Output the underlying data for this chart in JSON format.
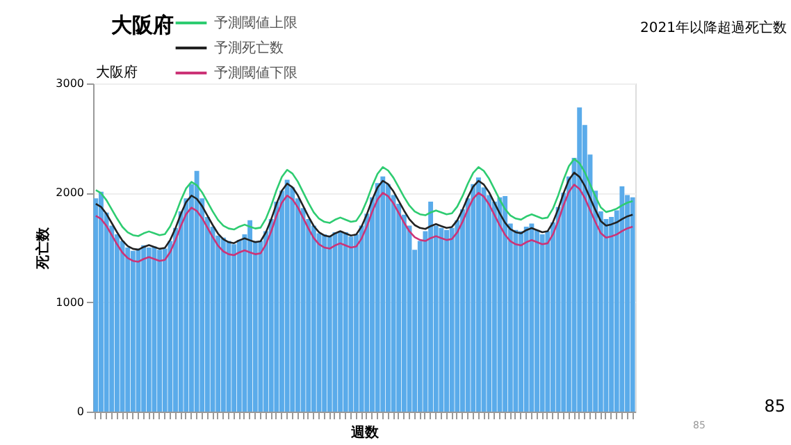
{
  "chart_data": {
    "type": "bar",
    "title": "大阪府",
    "subtitle": "大阪府",
    "xlabel": "週数",
    "ylabel": "死亡数",
    "annotations": [
      "2021年以降超過死亡数",
      "85",
      "85"
    ],
    "categories": [
      null,
      null,
      null,
      null,
      null,
      null,
      null,
      null,
      null,
      null,
      null,
      null,
      null,
      null,
      null,
      null,
      null,
      null,
      null,
      null,
      null,
      null,
      null,
      null,
      null,
      null,
      null,
      null,
      null,
      null,
      null,
      null,
      null,
      null,
      null,
      null,
      null,
      null,
      null,
      null,
      null,
      null,
      null,
      null,
      null,
      null,
      null,
      null,
      null,
      null,
      null,
      null,
      null,
      null,
      null,
      null,
      null,
      null,
      null,
      null,
      null,
      null,
      null,
      null,
      null,
      null,
      null,
      null,
      null,
      null,
      null,
      null,
      null,
      null,
      null,
      null,
      null,
      null,
      null,
      null,
      null,
      null,
      null,
      null,
      null,
      null,
      null,
      null,
      null,
      null,
      null,
      null,
      null,
      null,
      null,
      null,
      null,
      null,
      null,
      null,
      null,
      null
    ],
    "ylim": [
      0,
      3000
    ],
    "yticks": [
      0,
      1000,
      2000,
      3000
    ],
    "grid": "y",
    "legend": "top",
    "tick_labels": "y",
    "line_style": "solid",
    "series": [
      {
        "color": "#5aabea",
        "values": [
          1950,
          2010,
          1820,
          1700,
          1620,
          1560,
          1500,
          1470,
          1490,
          1520,
          1500,
          1510,
          1480,
          1490,
          1560,
          1680,
          1830,
          1950,
          2080,
          2200,
          1950,
          1780,
          1690,
          1610,
          1590,
          1560,
          1530,
          1570,
          1620,
          1750,
          1560,
          1560,
          1650,
          1760,
          1920,
          2020,
          2120,
          2050,
          1950,
          1860,
          1760,
          1700,
          1630,
          1620,
          1610,
          1640,
          1650,
          1640,
          1600,
          1620,
          1700,
          1810,
          1960,
          2090,
          2150,
          2080,
          1980,
          1900,
          1800,
          1700,
          1480,
          1560,
          1650,
          1920,
          1700,
          1680,
          1660,
          1680,
          1750,
          1850,
          1950,
          2080,
          2140,
          2050,
          1980,
          1920,
          1960,
          1970,
          1720,
          1660,
          1650,
          1690,
          1720,
          1660,
          1620,
          1650,
          1730,
          1870,
          2000,
          2150,
          2320,
          2780,
          2620,
          2350,
          2020,
          1830,
          1760,
          1780,
          1840,
          2060,
          1980,
          1960
        ]
      },
      {
        "type": "line",
        "name": "予測閾値上限",
        "color": "#2ecc71",
        "values": [
          2025,
          1996,
          1933,
          1849,
          1765,
          1689,
          1639,
          1613,
          1605,
          1630,
          1647,
          1630,
          1613,
          1622,
          1694,
          1803,
          1932,
          2041,
          2100,
          2070,
          2004,
          1917,
          1830,
          1752,
          1700,
          1674,
          1665,
          1691,
          1709,
          1691,
          1674,
          1682,
          1763,
          1883,
          2025,
          2145,
          2210,
          2176,
          2103,
          2006,
          1909,
          1822,
          1764,
          1735,
          1725,
          1754,
          1774,
          1754,
          1735,
          1744,
          1817,
          1929,
          2062,
          2174,
          2235,
          2204,
          2138,
          2050,
          1962,
          1883,
          1830,
          1804,
          1795,
          1821,
          1839,
          1821,
          1804,
          1813,
          1874,
          1971,
          2085,
          2182,
          2235,
          2201,
          2129,
          2033,
          1937,
          1851,
          1793,
          1765,
          1755,
          1784,
          1803,
          1784,
          1765,
          1774,
          1855,
          1977,
          2121,
          2243,
          2310,
          2271,
          2188,
          2077,
          1967,
          1867,
          1825,
          1837,
          1855,
          1885,
          1910,
          1925
        ]
      },
      {
        "type": "line",
        "name": "予測死亡数",
        "color": "#222222",
        "values": [
          1900,
          1871,
          1808,
          1724,
          1640,
          1564,
          1514,
          1488,
          1480,
          1505,
          1522,
          1505,
          1488,
          1497,
          1569,
          1678,
          1807,
          1916,
          1975,
          1945,
          1879,
          1792,
          1705,
          1627,
          1575,
          1549,
          1540,
          1566,
          1584,
          1566,
          1549,
          1557,
          1638,
          1758,
          1900,
          2020,
          2085,
          2051,
          1978,
          1881,
          1784,
          1697,
          1639,
          1610,
          1600,
          1629,
          1649,
          1629,
          1610,
          1619,
          1692,
          1804,
          1937,
          2049,
          2110,
          2079,
          2013,
          1925,
          1837,
          1758,
          1705,
          1679,
          1670,
          1696,
          1714,
          1696,
          1679,
          1688,
          1749,
          1846,
          1960,
          2057,
          2110,
          2076,
          2004,
          1908,
          1812,
          1726,
          1668,
          1640,
          1630,
          1659,
          1678,
          1659,
          1640,
          1649,
          1730,
          1852,
          1996,
          2118,
          2185,
          2146,
          2063,
          1952,
          1842,
          1742,
          1700,
          1712,
          1730,
          1760,
          1785,
          1800
        ]
      },
      {
        "type": "line",
        "name": "予測閾値下限",
        "color": "#cc3377",
        "values": [
          1790,
          1761,
          1698,
          1614,
          1530,
          1454,
          1404,
          1378,
          1370,
          1395,
          1412,
          1395,
          1378,
          1387,
          1459,
          1568,
          1697,
          1806,
          1865,
          1835,
          1769,
          1682,
          1595,
          1517,
          1465,
          1439,
          1430,
          1456,
          1474,
          1456,
          1439,
          1447,
          1528,
          1648,
          1790,
          1910,
          1975,
          1941,
          1868,
          1771,
          1674,
          1587,
          1529,
          1500,
          1490,
          1519,
          1539,
          1519,
          1500,
          1509,
          1582,
          1694,
          1827,
          1939,
          2000,
          1969,
          1903,
          1815,
          1727,
          1648,
          1595,
          1569,
          1560,
          1586,
          1604,
          1586,
          1569,
          1578,
          1639,
          1736,
          1850,
          1947,
          2000,
          1966,
          1894,
          1798,
          1702,
          1616,
          1558,
          1530,
          1520,
          1549,
          1568,
          1549,
          1530,
          1539,
          1620,
          1742,
          1886,
          2008,
          2075,
          2036,
          1953,
          1842,
          1732,
          1632,
          1590,
          1602,
          1620,
          1650,
          1675,
          1690
        ]
      }
    ]
  }
}
